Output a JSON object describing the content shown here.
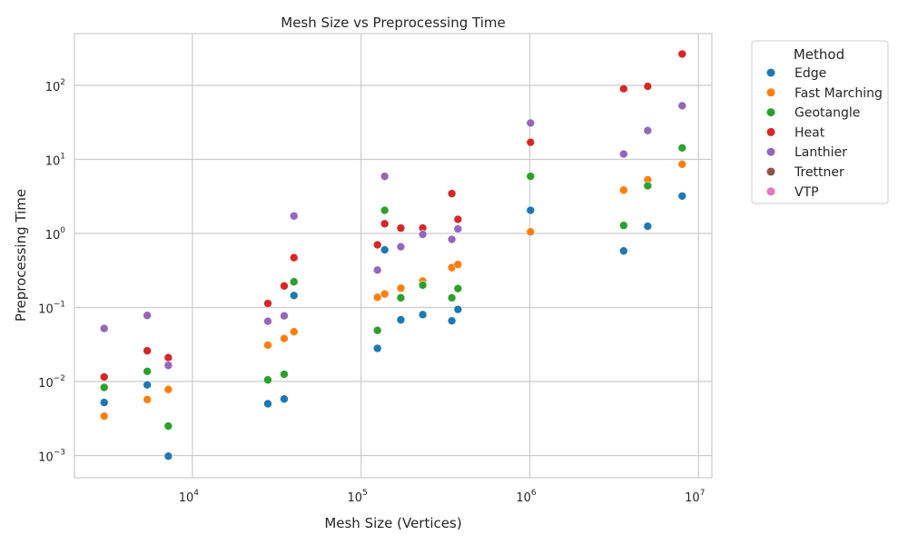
{
  "chart_data": {
    "type": "scatter",
    "title": "Mesh Size vs Preprocessing Time",
    "xlabel": "Mesh Size (Vertices)",
    "ylabel": "Preprocessing Time",
    "x_scale": "log",
    "y_scale": "log",
    "xlim": [
      2000,
      12000000
    ],
    "ylim": [
      0.0005,
      500
    ],
    "x_ticks": [
      {
        "value": 10000,
        "base": "10",
        "exp": "4"
      },
      {
        "value": 100000,
        "base": "10",
        "exp": "5"
      },
      {
        "value": 1000000,
        "base": "10",
        "exp": "6"
      },
      {
        "value": 10000000,
        "base": "10",
        "exp": "7"
      }
    ],
    "y_ticks": [
      {
        "value": 0.001,
        "base": "10",
        "exp": "−3"
      },
      {
        "value": 0.01,
        "base": "10",
        "exp": "−2"
      },
      {
        "value": 0.1,
        "base": "10",
        "exp": "−1"
      },
      {
        "value": 1,
        "base": "10",
        "exp": "0"
      },
      {
        "value": 10,
        "base": "10",
        "exp": "1"
      },
      {
        "value": 100,
        "base": "10",
        "exp": "2"
      }
    ],
    "grid": true,
    "legend_title": "Method",
    "legend_position": "outside-right",
    "series": [
      {
        "name": "Edge",
        "color": "#1f77b4",
        "points": [
          [
            3000,
            0.0052
          ],
          [
            5400,
            0.009
          ],
          [
            7200,
            0.00098
          ],
          [
            28000,
            0.005
          ],
          [
            35000,
            0.0058
          ],
          [
            40000,
            0.145
          ],
          [
            125000,
            0.028
          ],
          [
            138000,
            0.6
          ],
          [
            172000,
            0.068
          ],
          [
            232000,
            0.08
          ],
          [
            345000,
            0.066
          ],
          [
            375000,
            0.094
          ],
          [
            1010000,
            2.05
          ],
          [
            3600000,
            0.58
          ],
          [
            5000000,
            1.25
          ],
          [
            8000000,
            3.2
          ]
        ]
      },
      {
        "name": "Fast Marching",
        "color": "#ff7f0e",
        "points": [
          [
            3000,
            0.0034
          ],
          [
            5400,
            0.0057
          ],
          [
            7200,
            0.0078
          ],
          [
            28000,
            0.031
          ],
          [
            35000,
            0.038
          ],
          [
            40000,
            0.047
          ],
          [
            125000,
            0.137
          ],
          [
            138000,
            0.152
          ],
          [
            172000,
            0.182
          ],
          [
            232000,
            0.228
          ],
          [
            345000,
            0.345
          ],
          [
            375000,
            0.38
          ],
          [
            1010000,
            1.05
          ],
          [
            3600000,
            3.85
          ],
          [
            5000000,
            5.3
          ],
          [
            8000000,
            8.6
          ]
        ]
      },
      {
        "name": "Geotangle",
        "color": "#2ca02c",
        "points": [
          [
            3000,
            0.0083
          ],
          [
            5400,
            0.0137
          ],
          [
            7200,
            0.0025
          ],
          [
            28000,
            0.0105
          ],
          [
            35000,
            0.0125
          ],
          [
            40000,
            0.222
          ],
          [
            125000,
            0.049
          ],
          [
            138000,
            2.05
          ],
          [
            172000,
            0.135
          ],
          [
            232000,
            0.2
          ],
          [
            345000,
            0.135
          ],
          [
            375000,
            0.18
          ],
          [
            1010000,
            5.9
          ],
          [
            3600000,
            1.28
          ],
          [
            5000000,
            4.4
          ],
          [
            8000000,
            14.3
          ]
        ]
      },
      {
        "name": "Heat",
        "color": "#d62728",
        "points": [
          [
            3000,
            0.0115
          ],
          [
            5400,
            0.026
          ],
          [
            7200,
            0.021
          ],
          [
            28000,
            0.113
          ],
          [
            35000,
            0.195
          ],
          [
            40000,
            0.47
          ],
          [
            125000,
            0.7
          ],
          [
            138000,
            1.35
          ],
          [
            172000,
            1.18
          ],
          [
            232000,
            1.18
          ],
          [
            345000,
            3.45
          ],
          [
            375000,
            1.55
          ],
          [
            1010000,
            17
          ],
          [
            3600000,
            90
          ],
          [
            5000000,
            97
          ],
          [
            8000000,
            265
          ]
        ]
      },
      {
        "name": "Lanthier",
        "color": "#9467bd",
        "points": [
          [
            3000,
            0.052
          ],
          [
            5400,
            0.078
          ],
          [
            7200,
            0.0165
          ],
          [
            28000,
            0.065
          ],
          [
            35000,
            0.077
          ],
          [
            40000,
            1.72
          ],
          [
            125000,
            0.32
          ],
          [
            138000,
            5.9
          ],
          [
            172000,
            0.66
          ],
          [
            232000,
            0.97
          ],
          [
            345000,
            0.83
          ],
          [
            375000,
            1.15
          ],
          [
            1010000,
            31
          ],
          [
            3600000,
            11.8
          ],
          [
            5000000,
            24.5
          ],
          [
            8000000,
            53
          ]
        ]
      },
      {
        "name": "Trettner",
        "color": "#8c564b",
        "points": []
      },
      {
        "name": "VTP",
        "color": "#e377c2",
        "points": []
      }
    ]
  }
}
